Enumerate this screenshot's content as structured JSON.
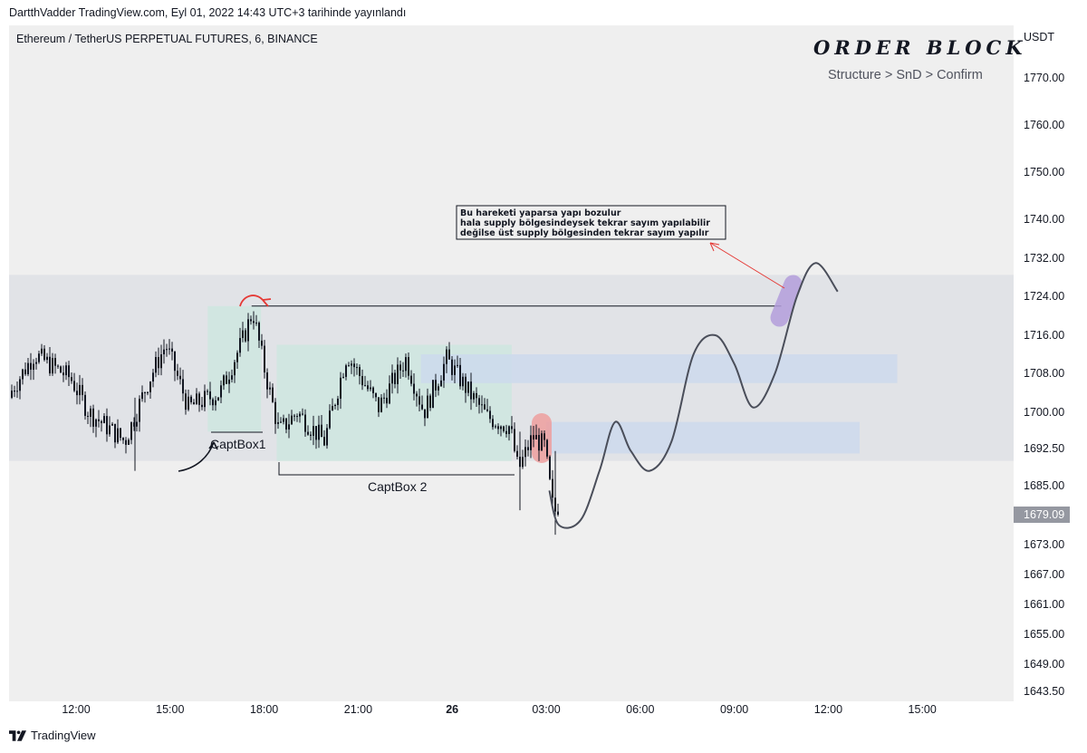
{
  "header": {
    "published": "DartthVadder TradingView.com, Eyl 01, 2022 14:43 UTC+3 tarihinde yayınlandı"
  },
  "symbol_title": "Ethereum / TetherUS PERPETUAL FUTURES, 6, BINANCE",
  "overlay": {
    "title": "ORDER BLOCK",
    "subtitle": "Structure > SnD > Confirm"
  },
  "price_unit": "USDT",
  "footer": {
    "brand": "TradingView"
  },
  "colors": {
    "candle": "#131722",
    "forecast_line": "#4a4e5a",
    "arrow": "#e53935",
    "zone_grey": "#dfe1e5",
    "zone_green": "#cfe5e0",
    "zone_blue": "#cdd9ec",
    "highlight_red": "#ef9a9a",
    "highlight_purple": "#b39ddb",
    "last_price_bg": "#9598a1"
  },
  "chart_data": {
    "type": "candlestick",
    "y_axis": {
      "ticks": [
        {
          "value": 1770,
          "label": "1770.00"
        },
        {
          "value": 1760,
          "label": "1760.00"
        },
        {
          "value": 1750,
          "label": "1750.00"
        },
        {
          "value": 1740,
          "label": "1740.00"
        },
        {
          "value": 1732,
          "label": "1732.00"
        },
        {
          "value": 1724,
          "label": "1724.00"
        },
        {
          "value": 1716,
          "label": "1716.00"
        },
        {
          "value": 1708,
          "label": "1708.00"
        },
        {
          "value": 1700,
          "label": "1700.00"
        },
        {
          "value": 1692.5,
          "label": "1692.50"
        },
        {
          "value": 1685,
          "label": "1685.00"
        },
        {
          "value": 1673,
          "label": "1673.00"
        },
        {
          "value": 1667,
          "label": "1667.00"
        },
        {
          "value": 1661,
          "label": "1661.00"
        },
        {
          "value": 1655,
          "label": "1655.00"
        },
        {
          "value": 1649,
          "label": "1649.00"
        },
        {
          "value": 1643.5,
          "label": "1643.50"
        }
      ],
      "last_price": {
        "value": 1679.09,
        "label": "1679.09"
      }
    },
    "x_axis": {
      "ticks": [
        {
          "hour": 12,
          "label": "12:00",
          "bold": false
        },
        {
          "hour": 15,
          "label": "15:00",
          "bold": false
        },
        {
          "hour": 18,
          "label": "18:00",
          "bold": false
        },
        {
          "hour": 21,
          "label": "21:00",
          "bold": false
        },
        {
          "hour": 24,
          "label": "26",
          "bold": true
        },
        {
          "hour": 27,
          "label": "03:00",
          "bold": false
        },
        {
          "hour": 30,
          "label": "06:00",
          "bold": false
        },
        {
          "hour": 33,
          "label": "09:00",
          "bold": false
        },
        {
          "hour": 36,
          "label": "12:00",
          "bold": false
        },
        {
          "hour": 39,
          "label": "15:00",
          "bold": false
        }
      ]
    },
    "price_range": {
      "low": 1676,
      "high": 1720,
      "start": 1703,
      "end": 1679.09
    },
    "zones": [
      {
        "kind": "grey",
        "price_top": 1728.5,
        "price_bottom": 1690
      },
      {
        "kind": "green",
        "name": "captbox1",
        "hour_start": 16.2,
        "hour_end": 17.9,
        "price_top": 1722,
        "price_bottom": 1696
      },
      {
        "kind": "green",
        "name": "captbox2",
        "hour_start": 18.4,
        "hour_end": 25.9,
        "price_top": 1714,
        "price_bottom": 1690
      },
      {
        "kind": "blue",
        "hour_start": 23.0,
        "hour_end": 38.2,
        "price_top": 1712,
        "price_bottom": 1706
      },
      {
        "kind": "blue",
        "hour_start": 27.0,
        "hour_end": 37.0,
        "price_top": 1698,
        "price_bottom": 1691.5
      }
    ],
    "level_line": {
      "price": 1722,
      "hour_start": 17.6,
      "hour_end": 34.5
    },
    "forecast_path": [
      {
        "hour": 27.1,
        "price": 1684
      },
      {
        "hour": 27.4,
        "price": 1677
      },
      {
        "hour": 28.1,
        "price": 1678
      },
      {
        "hour": 28.7,
        "price": 1688
      },
      {
        "hour": 29.2,
        "price": 1698
      },
      {
        "hour": 29.7,
        "price": 1692
      },
      {
        "hour": 30.3,
        "price": 1688
      },
      {
        "hour": 31.0,
        "price": 1694
      },
      {
        "hour": 31.7,
        "price": 1712
      },
      {
        "hour": 32.4,
        "price": 1716
      },
      {
        "hour": 33.0,
        "price": 1710
      },
      {
        "hour": 33.6,
        "price": 1701
      },
      {
        "hour": 34.3,
        "price": 1708
      },
      {
        "hour": 35.0,
        "price": 1724
      },
      {
        "hour": 35.6,
        "price": 1731
      },
      {
        "hour": 36.3,
        "price": 1725
      }
    ],
    "annotations": {
      "note_lines": [
        "Bu hareketi yaparsa yapı bozulur",
        "hala supply bölgesindeysek tekrar sayım yapılabilir",
        "değilse üst supply bölgesinden tekrar sayım yapılır"
      ],
      "captbox1_label": "CaptBox1",
      "captbox2_label": "CaptBox 2"
    }
  }
}
